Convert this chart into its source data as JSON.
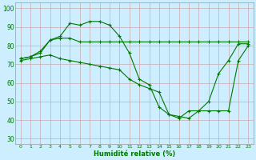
{
  "background_color": "#cceeff",
  "grid_color": "#aaccaa",
  "line_color": "#007700",
  "xlabel": "Humidité relative (%)",
  "xlim": [
    -0.5,
    23.5
  ],
  "ylim": [
    27,
    103
  ],
  "yticks": [
    30,
    40,
    50,
    60,
    70,
    80,
    90,
    100
  ],
  "xticks": [
    0,
    1,
    2,
    3,
    4,
    5,
    6,
    7,
    8,
    9,
    10,
    11,
    12,
    13,
    14,
    15,
    16,
    17,
    18,
    19,
    20,
    21,
    22,
    23
  ],
  "series": [
    [
      73,
      74,
      76,
      83,
      85,
      92,
      91,
      93,
      93,
      91,
      85,
      76,
      62,
      59,
      47,
      43,
      41,
      45,
      45,
      50,
      65,
      72,
      81,
      81
    ],
    [
      73,
      74,
      77,
      83,
      84,
      84,
      82,
      82,
      82,
      82,
      82,
      82,
      82,
      82,
      82,
      82,
      82,
      82,
      82,
      82,
      82,
      82,
      82,
      82
    ],
    [
      72,
      73,
      74,
      75,
      73,
      72,
      71,
      70,
      69,
      68,
      67,
      62,
      59,
      57,
      55,
      43,
      42,
      41,
      45,
      45,
      45,
      45,
      72,
      80
    ]
  ]
}
